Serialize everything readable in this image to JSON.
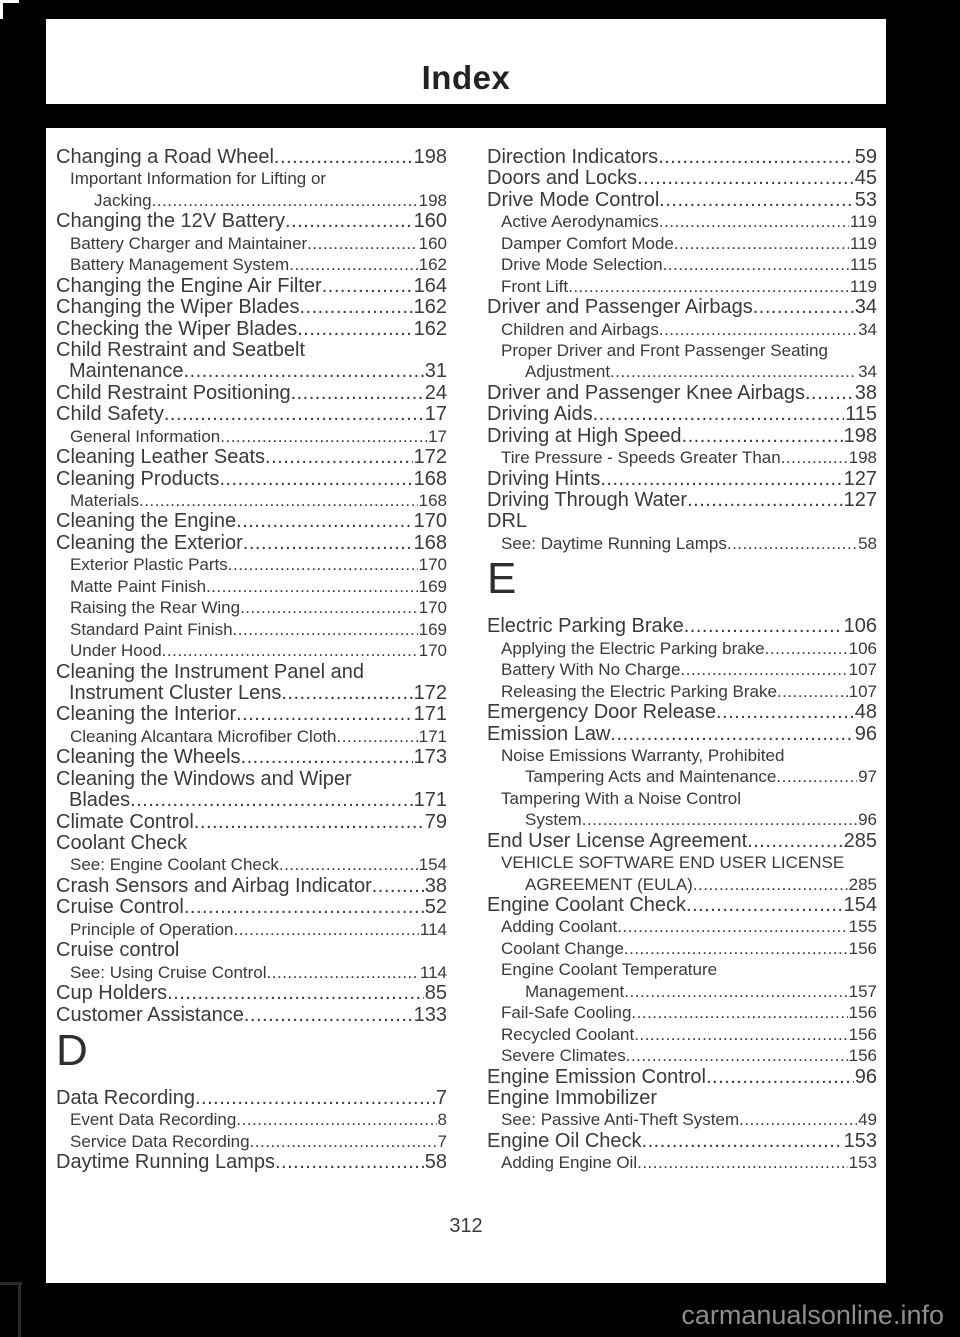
{
  "page": {
    "header_title": "Index",
    "page_number": "312",
    "watermark": "carmanualsonline.info"
  },
  "colors": {
    "frame": "#000000",
    "paper": "#ffffff",
    "text": "#3a3a3a",
    "watermark_gray": "#8d8d8d"
  },
  "columns": {
    "left": [
      {
        "k": "m",
        "t": "Changing a Road Wheel",
        "p": "198"
      },
      {
        "k": "s",
        "t": "Important Information for Lifting or",
        "p": ""
      },
      {
        "k": "d",
        "t": "Jacking",
        "p": "198"
      },
      {
        "k": "m",
        "t": "Changing the 12V Battery",
        "p": "160"
      },
      {
        "k": "s",
        "t": "Battery Charger and Maintainer",
        "p": "160"
      },
      {
        "k": "s",
        "t": "Battery Management System",
        "p": "162"
      },
      {
        "k": "m",
        "t": "Changing the Engine Air Filter",
        "p": "164"
      },
      {
        "k": "m",
        "t": "Changing the Wiper Blades",
        "p": "162"
      },
      {
        "k": "m",
        "t": "Checking the Wiper Blades",
        "p": "162"
      },
      {
        "k": "m",
        "t": "Child Restraint and Seatbelt",
        "p": ""
      },
      {
        "k": "c",
        "t": "Maintenance",
        "p": "31"
      },
      {
        "k": "m",
        "t": "Child Restraint Positioning",
        "p": "24"
      },
      {
        "k": "m",
        "t": "Child Safety",
        "p": "17"
      },
      {
        "k": "s",
        "t": "General Information",
        "p": "17"
      },
      {
        "k": "m",
        "t": "Cleaning Leather Seats",
        "p": "172"
      },
      {
        "k": "m",
        "t": "Cleaning Products",
        "p": "168"
      },
      {
        "k": "s",
        "t": "Materials",
        "p": "168"
      },
      {
        "k": "m",
        "t": "Cleaning the Engine",
        "p": "170"
      },
      {
        "k": "m",
        "t": "Cleaning the Exterior",
        "p": "168"
      },
      {
        "k": "s",
        "t": "Exterior Plastic Parts",
        "p": "170"
      },
      {
        "k": "s",
        "t": "Matte Paint Finish",
        "p": "169"
      },
      {
        "k": "s",
        "t": "Raising the Rear Wing",
        "p": "170"
      },
      {
        "k": "s",
        "t": "Standard Paint Finish",
        "p": "169"
      },
      {
        "k": "s",
        "t": "Under Hood",
        "p": "170"
      },
      {
        "k": "m",
        "t": "Cleaning the Instrument Panel and",
        "p": ""
      },
      {
        "k": "c",
        "t": "Instrument Cluster Lens",
        "p": "172"
      },
      {
        "k": "m",
        "t": "Cleaning the Interior",
        "p": "171"
      },
      {
        "k": "s",
        "t": "Cleaning Alcantara Microfiber Cloth",
        "p": "171"
      },
      {
        "k": "m",
        "t": "Cleaning the Wheels",
        "p": "173"
      },
      {
        "k": "m",
        "t": "Cleaning the Windows and Wiper",
        "p": ""
      },
      {
        "k": "c",
        "t": "Blades",
        "p": "171"
      },
      {
        "k": "m",
        "t": "Climate Control",
        "p": "79"
      },
      {
        "k": "m",
        "t": "Coolant Check",
        "p": ""
      },
      {
        "k": "s",
        "t": "See: Engine Coolant Check",
        "p": "154"
      },
      {
        "k": "m",
        "t": "Crash Sensors and Airbag Indicator",
        "p": "38"
      },
      {
        "k": "m",
        "t": "Cruise Control",
        "p": "52"
      },
      {
        "k": "s",
        "t": "Principle of Operation",
        "p": "114"
      },
      {
        "k": "m",
        "t": "Cruise control",
        "p": ""
      },
      {
        "k": "s",
        "t": "See: Using Cruise Control",
        "p": "114"
      },
      {
        "k": "m",
        "t": "Cup Holders",
        "p": "85"
      },
      {
        "k": "m",
        "t": "Customer Assistance",
        "p": "133"
      },
      {
        "k": "L",
        "t": "D",
        "p": ""
      },
      {
        "k": "m",
        "t": "Data Recording",
        "p": "7"
      },
      {
        "k": "s",
        "t": "Event Data Recording",
        "p": "8"
      },
      {
        "k": "s",
        "t": "Service Data Recording",
        "p": "7"
      },
      {
        "k": "m",
        "t": "Daytime Running Lamps",
        "p": "58"
      }
    ],
    "right": [
      {
        "k": "m",
        "t": "Direction Indicators",
        "p": "59"
      },
      {
        "k": "m",
        "t": "Doors and Locks",
        "p": "45"
      },
      {
        "k": "m",
        "t": "Drive Mode Control",
        "p": "53"
      },
      {
        "k": "s",
        "t": "Active Aerodynamics",
        "p": "119"
      },
      {
        "k": "s",
        "t": "Damper Comfort Mode",
        "p": "119"
      },
      {
        "k": "s",
        "t": "Drive Mode Selection",
        "p": "115"
      },
      {
        "k": "s",
        "t": "Front Lift",
        "p": "119"
      },
      {
        "k": "m",
        "t": "Driver and Passenger Airbags",
        "p": "34"
      },
      {
        "k": "s",
        "t": "Children and Airbags",
        "p": "34"
      },
      {
        "k": "s",
        "t": "Proper Driver and Front Passenger Seating",
        "p": ""
      },
      {
        "k": "d",
        "t": "Adjustment",
        "p": "34"
      },
      {
        "k": "m",
        "t": "Driver and Passenger Knee Airbags",
        "p": "38"
      },
      {
        "k": "m",
        "t": "Driving Aids",
        "p": "115"
      },
      {
        "k": "m",
        "t": "Driving at High Speed",
        "p": "198"
      },
      {
        "k": "s",
        "t": "Tire Pressure - Speeds Greater Than",
        "p": "198"
      },
      {
        "k": "m",
        "t": "Driving Hints",
        "p": "127"
      },
      {
        "k": "m",
        "t": "Driving Through Water",
        "p": "127"
      },
      {
        "k": "m",
        "t": "DRL",
        "p": ""
      },
      {
        "k": "s",
        "t": "See: Daytime Running Lamps",
        "p": "58"
      },
      {
        "k": "L",
        "t": "E",
        "p": ""
      },
      {
        "k": "m",
        "t": "Electric Parking Brake",
        "p": "106"
      },
      {
        "k": "s",
        "t": "Applying the Electric Parking brake",
        "p": "106"
      },
      {
        "k": "s",
        "t": "Battery With No Charge",
        "p": "107"
      },
      {
        "k": "s",
        "t": "Releasing the Electric Parking Brake",
        "p": "107"
      },
      {
        "k": "m",
        "t": "Emergency Door Release",
        "p": "48"
      },
      {
        "k": "m",
        "t": "Emission Law",
        "p": "96"
      },
      {
        "k": "s",
        "t": "Noise Emissions Warranty, Prohibited",
        "p": ""
      },
      {
        "k": "d",
        "t": "Tampering Acts and Maintenance",
        "p": "97"
      },
      {
        "k": "s",
        "t": "Tampering With a Noise Control",
        "p": ""
      },
      {
        "k": "d",
        "t": "System",
        "p": "96"
      },
      {
        "k": "m",
        "t": "End User License Agreement",
        "p": "285"
      },
      {
        "k": "s",
        "t": "VEHICLE SOFTWARE END USER LICENSE",
        "p": ""
      },
      {
        "k": "d",
        "t": "AGREEMENT (EULA)",
        "p": "285"
      },
      {
        "k": "m",
        "t": "Engine Coolant Check",
        "p": "154"
      },
      {
        "k": "s",
        "t": "Adding Coolant",
        "p": "155"
      },
      {
        "k": "s",
        "t": "Coolant Change",
        "p": "156"
      },
      {
        "k": "s",
        "t": "Engine Coolant Temperature",
        "p": ""
      },
      {
        "k": "d",
        "t": "Management",
        "p": "157"
      },
      {
        "k": "s",
        "t": "Fail-Safe Cooling",
        "p": "156"
      },
      {
        "k": "s",
        "t": "Recycled Coolant",
        "p": "156"
      },
      {
        "k": "s",
        "t": "Severe Climates",
        "p": "156"
      },
      {
        "k": "m",
        "t": "Engine Emission Control",
        "p": "96"
      },
      {
        "k": "m",
        "t": "Engine Immobilizer",
        "p": ""
      },
      {
        "k": "s",
        "t": "See: Passive Anti-Theft System",
        "p": "49"
      },
      {
        "k": "m",
        "t": "Engine Oil Check",
        "p": "153"
      },
      {
        "k": "s",
        "t": "Adding Engine Oil",
        "p": "153"
      }
    ]
  }
}
